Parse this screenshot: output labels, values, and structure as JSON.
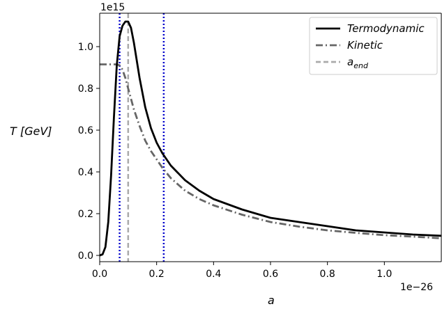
{
  "chart_data": {
    "type": "line",
    "title": "",
    "xlabel": "a",
    "ylabel": "T [GeV]",
    "x_offset_label": "1e−26",
    "y_offset_label": "1e15",
    "xlim": [
      0.0,
      1.2
    ],
    "ylim": [
      -0.03,
      1.16
    ],
    "x_ticks": [
      0.0,
      0.2,
      0.4,
      0.6,
      0.8,
      1.0
    ],
    "x_tick_labels": [
      "0.0",
      "0.2",
      "0.4",
      "0.6",
      "0.8",
      "1.0"
    ],
    "y_ticks": [
      0.0,
      0.2,
      0.4,
      0.6,
      0.8,
      1.0
    ],
    "y_tick_labels": [
      "0.0",
      "0.2",
      "0.4",
      "0.6",
      "0.8",
      "1.0"
    ],
    "grid": false,
    "legend_position": "top-right",
    "series": [
      {
        "name": "Termodynamic",
        "color": "#000000",
        "style": "solid",
        "x": [
          0.0,
          0.01,
          0.02,
          0.03,
          0.04,
          0.05,
          0.06,
          0.07,
          0.08,
          0.09,
          0.1,
          0.11,
          0.12,
          0.14,
          0.16,
          0.18,
          0.2,
          0.22,
          0.25,
          0.3,
          0.35,
          0.4,
          0.5,
          0.6,
          0.7,
          0.8,
          0.9,
          1.0,
          1.1,
          1.2
        ],
        "values": [
          0.0,
          0.005,
          0.04,
          0.16,
          0.38,
          0.66,
          0.91,
          1.05,
          1.1,
          1.12,
          1.12,
          1.09,
          1.02,
          0.85,
          0.71,
          0.61,
          0.54,
          0.49,
          0.43,
          0.36,
          0.31,
          0.27,
          0.22,
          0.18,
          0.16,
          0.14,
          0.12,
          0.11,
          0.1,
          0.094
        ]
      },
      {
        "name": "Kinetic",
        "color": "#666666",
        "style": "dashdot",
        "x": [
          0.0,
          0.02,
          0.04,
          0.06,
          0.07,
          0.08,
          0.09,
          0.1,
          0.12,
          0.14,
          0.16,
          0.18,
          0.2,
          0.22,
          0.25,
          0.3,
          0.35,
          0.4,
          0.5,
          0.6,
          0.7,
          0.8,
          0.9,
          1.0,
          1.1,
          1.2
        ],
        "values": [
          0.915,
          0.915,
          0.915,
          0.915,
          0.91,
          0.89,
          0.85,
          0.8,
          0.7,
          0.62,
          0.55,
          0.5,
          0.46,
          0.42,
          0.37,
          0.31,
          0.27,
          0.24,
          0.195,
          0.16,
          0.138,
          0.12,
          0.108,
          0.097,
          0.09,
          0.082
        ]
      },
      {
        "name": "a_end",
        "color": "#aaaaaa",
        "style": "dashed",
        "vertical_at": 0.1
      }
    ],
    "vertical_lines": [
      {
        "x": 0.07,
        "color": "#0000cc",
        "style": "dotted"
      },
      {
        "x": 0.225,
        "color": "#0000cc",
        "style": "dotted"
      }
    ],
    "legend_entries": [
      {
        "text": "Termodynamic",
        "color": "#000000",
        "style": "solid"
      },
      {
        "text": "Kinetic",
        "color": "#666666",
        "style": "dashdot"
      },
      {
        "text_main": "a",
        "text_sub": "end",
        "color": "#aaaaaa",
        "style": "dashed"
      }
    ]
  }
}
